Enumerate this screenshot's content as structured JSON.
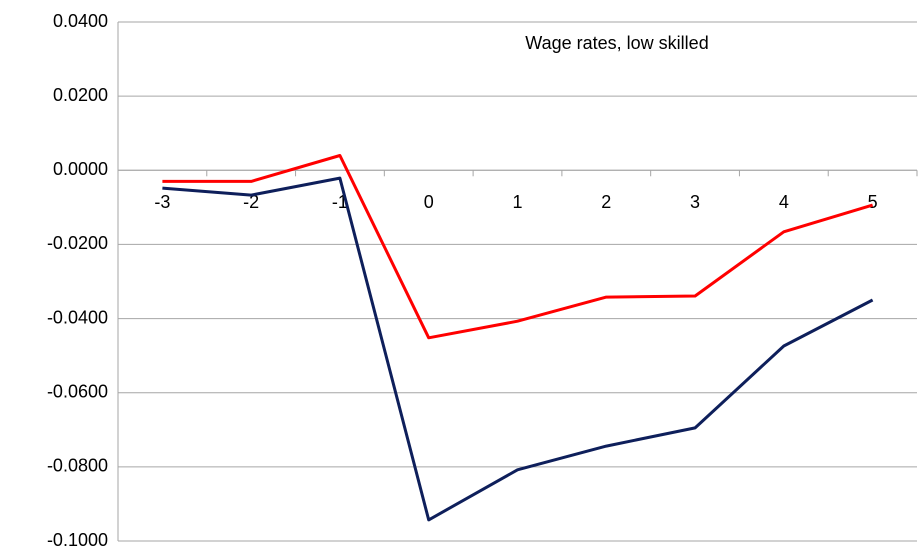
{
  "chart_data": {
    "type": "line",
    "title": "Wage rates, low skilled",
    "categories": [
      "-3",
      "-2",
      "-1",
      "0",
      "1",
      "2",
      "3",
      "4",
      "5"
    ],
    "series": [
      {
        "color": "#ff0000",
        "values": [
          -0.003,
          -0.003,
          0.004,
          -0.0452,
          -0.0407,
          -0.0342,
          -0.0339,
          -0.0166,
          -0.0094
        ]
      },
      {
        "color": "#0e1f5b",
        "values": [
          -0.0048,
          -0.0067,
          -0.0021,
          -0.0943,
          -0.0808,
          -0.0744,
          -0.0695,
          -0.0474,
          -0.035
        ]
      }
    ],
    "ylim": [
      -0.1,
      0.04
    ],
    "yticks": [
      {
        "value": -0.1,
        "label": "-0.1000"
      },
      {
        "value": -0.08,
        "label": "-0.0800"
      },
      {
        "value": -0.06,
        "label": "-0.0600"
      },
      {
        "value": -0.04,
        "label": "-0.0400"
      },
      {
        "value": -0.02,
        "label": "-0.0200"
      },
      {
        "value": 0,
        "label": "0.0000"
      },
      {
        "value": 0.02,
        "label": "0.0200"
      },
      {
        "value": 0.04,
        "label": "0.0400"
      }
    ],
    "grid": true
  }
}
